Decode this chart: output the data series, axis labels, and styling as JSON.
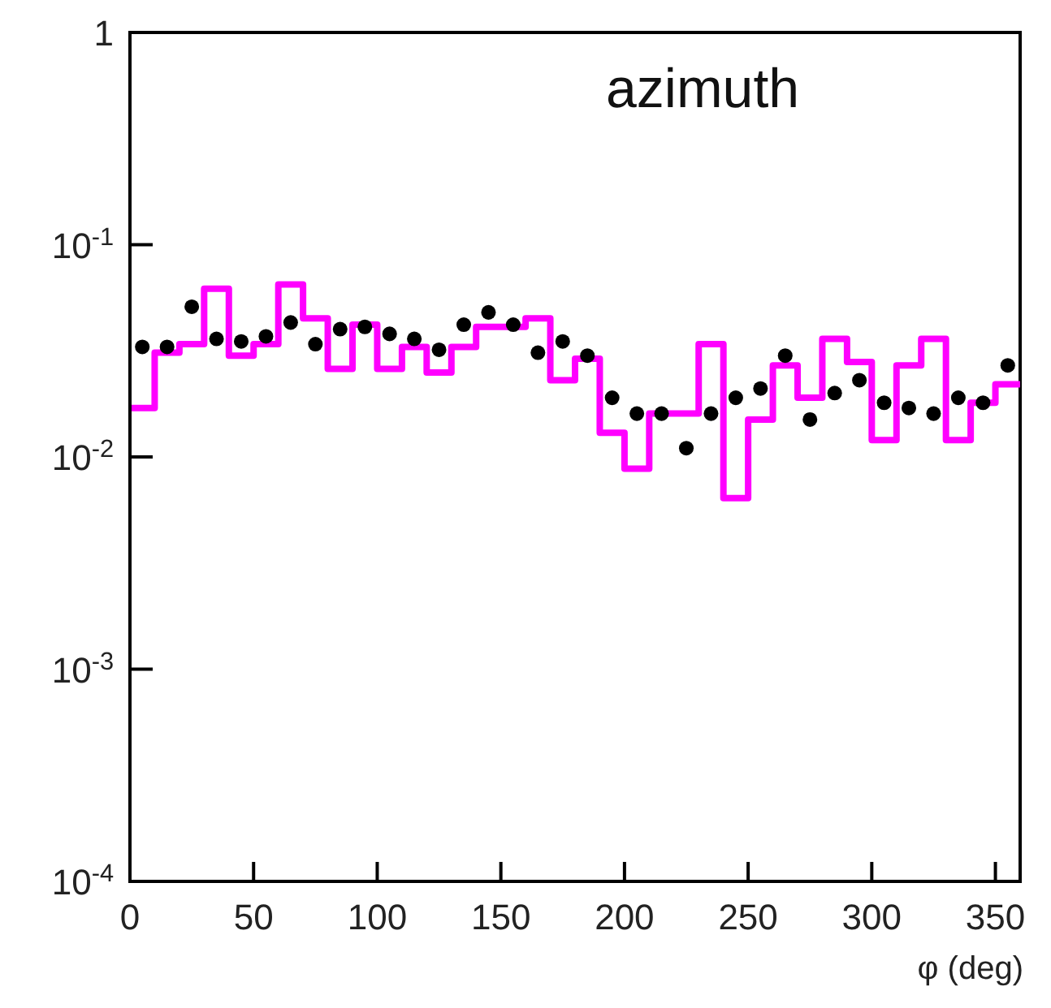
{
  "chart_data": {
    "type": "histogram",
    "xlabel": "φ (deg)",
    "annotations": [
      "azimuth"
    ],
    "log": "y",
    "grid": false,
    "xlim": [
      0,
      360
    ],
    "xticks": [
      0,
      50,
      100,
      150,
      200,
      250,
      300,
      350
    ],
    "ylim": [
      0.0001,
      1
    ],
    "yticks": [
      {
        "value": 0.0001,
        "label": "10$^{-4}$"
      },
      {
        "value": 0.001,
        "label": "10$^{-3}$"
      },
      {
        "value": 0.01,
        "label": "10$^{-2}$"
      },
      {
        "value": 0.1,
        "label": "10$^{-1}$"
      },
      1
    ],
    "series": [
      {
        "type": "histogram",
        "color": "#ff00ff",
        "bins": [
          0,
          10,
          20,
          30,
          40,
          50,
          60,
          70,
          80,
          90,
          100,
          110,
          120,
          130,
          140,
          150,
          160,
          170,
          180,
          190,
          200,
          210,
          220,
          230,
          240,
          250,
          260,
          270,
          280,
          290,
          300,
          310,
          320,
          330,
          340,
          350,
          360
        ],
        "values": [
          0.017,
          0.031,
          0.034,
          0.062,
          0.03,
          0.034,
          0.065,
          0.045,
          0.026,
          0.042,
          0.026,
          0.033,
          0.025,
          0.033,
          0.041,
          0.041,
          0.045,
          0.023,
          0.029,
          0.013,
          0.0088,
          0.016,
          0.016,
          0.034,
          0.0064,
          0.015,
          0.027,
          0.019,
          0.036,
          0.028,
          0.012,
          0.027,
          0.036,
          0.012,
          0.018,
          0.022
        ]
      },
      {
        "type": "scatter",
        "color": "#000000",
        "marker": "circle",
        "x": [
          5,
          15,
          25,
          35,
          45,
          55,
          65,
          75,
          85,
          95,
          105,
          115,
          125,
          135,
          145,
          155,
          165,
          175,
          185,
          195,
          205,
          215,
          225,
          235,
          245,
          255,
          265,
          275,
          285,
          295,
          305,
          315,
          325,
          335,
          345,
          355
        ],
        "values": [
          0.033,
          0.033,
          0.051,
          0.036,
          0.035,
          0.037,
          0.043,
          0.034,
          0.04,
          0.041,
          0.038,
          0.036,
          0.032,
          0.042,
          0.048,
          0.042,
          0.031,
          0.035,
          0.03,
          0.019,
          0.016,
          0.016,
          0.011,
          0.016,
          0.019,
          0.021,
          0.03,
          0.015,
          0.02,
          0.023,
          0.018,
          0.017,
          0.016,
          0.019,
          0.018,
          0.027
        ]
      }
    ]
  }
}
